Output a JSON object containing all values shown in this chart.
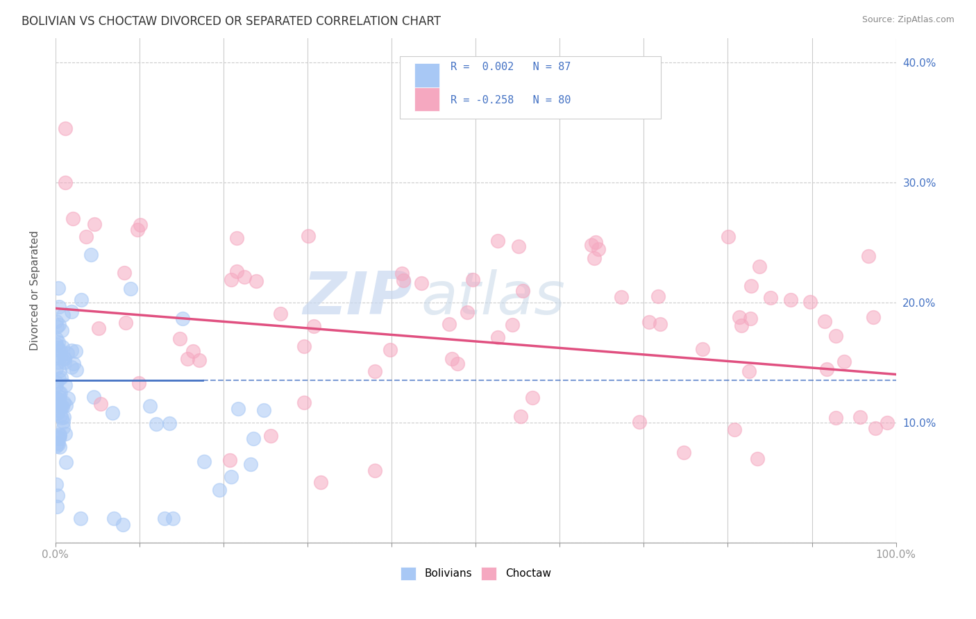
{
  "title": "BOLIVIAN VS CHOCTAW DIVORCED OR SEPARATED CORRELATION CHART",
  "source": "Source: ZipAtlas.com",
  "ylabel": "Divorced or Separated",
  "legend_label1": "Bolivians",
  "legend_label2": "Choctaw",
  "r1": "0.002",
  "n1": 87,
  "r2": "-0.258",
  "n2": 80,
  "bolivian_color": "#a8c8f5",
  "choctaw_color": "#f5a8c0",
  "bolivian_line_color": "#4472c4",
  "choctaw_line_color": "#e05080",
  "watermark_zip": "ZIP",
  "watermark_atlas": "atlas",
  "xmin": 0.0,
  "xmax": 1.0,
  "ymin": 0.0,
  "ymax": 0.42,
  "ytick_vals": [
    0.0,
    0.1,
    0.2,
    0.3,
    0.4
  ],
  "ytick_labels": [
    "",
    "10.0%",
    "20.0%",
    "30.0%",
    "40.0%"
  ],
  "bolivian_trend_y0": 0.135,
  "bolivian_trend_y1": 0.135,
  "choctaw_trend_y0": 0.195,
  "choctaw_trend_y1": 0.14
}
